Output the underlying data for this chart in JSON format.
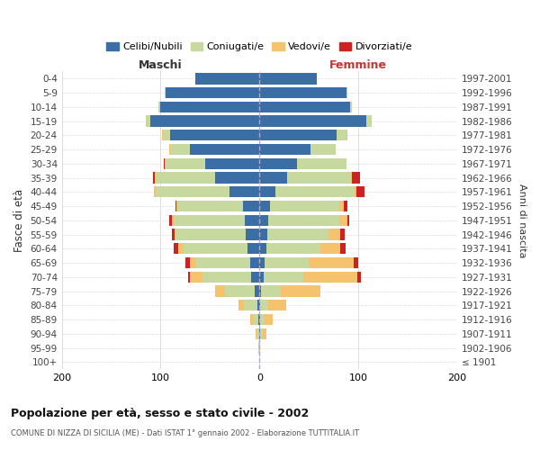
{
  "age_groups": [
    "0-4",
    "5-9",
    "10-14",
    "15-19",
    "20-24",
    "25-29",
    "30-34",
    "35-39",
    "40-44",
    "45-49",
    "50-54",
    "55-59",
    "60-64",
    "65-69",
    "70-74",
    "75-79",
    "80-84",
    "85-89",
    "90-94",
    "95-99",
    "100+"
  ],
  "birth_years": [
    "1997-2001",
    "1992-1996",
    "1987-1991",
    "1982-1986",
    "1977-1981",
    "1972-1976",
    "1967-1971",
    "1962-1966",
    "1957-1961",
    "1952-1956",
    "1947-1951",
    "1942-1946",
    "1937-1941",
    "1932-1936",
    "1927-1931",
    "1922-1926",
    "1917-1921",
    "1912-1916",
    "1907-1911",
    "1902-1906",
    "≤ 1901"
  ],
  "males_celibi": [
    65,
    95,
    100,
    110,
    90,
    70,
    55,
    45,
    30,
    17,
    15,
    14,
    12,
    9,
    8,
    5,
    2,
    1,
    0,
    0,
    0
  ],
  "males_coniugati": [
    0,
    1,
    2,
    5,
    8,
    20,
    40,
    60,
    75,
    65,
    72,
    70,
    65,
    55,
    50,
    30,
    14,
    6,
    3,
    1,
    0
  ],
  "males_vedovi": [
    0,
    0,
    0,
    0,
    1,
    1,
    1,
    1,
    2,
    2,
    2,
    2,
    5,
    6,
    12,
    10,
    5,
    2,
    1,
    0,
    0
  ],
  "males_divorziati": [
    0,
    0,
    0,
    0,
    0,
    0,
    1,
    2,
    0,
    1,
    2,
    3,
    5,
    5,
    2,
    0,
    0,
    0,
    0,
    0,
    0
  ],
  "females_nubili": [
    58,
    88,
    92,
    108,
    78,
    52,
    38,
    28,
    16,
    11,
    9,
    8,
    7,
    5,
    4,
    2,
    1,
    1,
    1,
    0,
    0
  ],
  "females_coniugate": [
    0,
    1,
    2,
    6,
    10,
    25,
    50,
    65,
    80,
    70,
    72,
    62,
    55,
    45,
    40,
    20,
    8,
    4,
    2,
    0,
    0
  ],
  "females_vedove": [
    0,
    0,
    0,
    0,
    1,
    0,
    0,
    1,
    2,
    4,
    8,
    12,
    20,
    45,
    55,
    40,
    18,
    8,
    4,
    1,
    0
  ],
  "females_divorziate": [
    0,
    0,
    0,
    0,
    0,
    0,
    0,
    8,
    8,
    4,
    2,
    4,
    5,
    5,
    4,
    0,
    0,
    0,
    0,
    0,
    0
  ],
  "colors": {
    "celibi_nubili": "#3A6EA5",
    "coniugati": "#C8D9A0",
    "vedovi": "#F5C36E",
    "divorziati": "#CC2222"
  },
  "xlim": 200,
  "title": "Popolazione per età, sesso e stato civile - 2002",
  "subtitle": "COMUNE DI NIZZA DI SICILIA (ME) - Dati ISTAT 1° gennaio 2002 - Elaborazione TUTTITALIA.IT",
  "ylabel_left": "Fasce di età",
  "ylabel_right": "Anni di nascita",
  "label_maschi": "Maschi",
  "label_femmine": "Femmine",
  "legend_labels": [
    "Celibi/Nubili",
    "Coniugati/e",
    "Vedovi/e",
    "Divorziati/e"
  ],
  "bg_color": "#FFFFFF",
  "grid_color": "#DDDDDD"
}
